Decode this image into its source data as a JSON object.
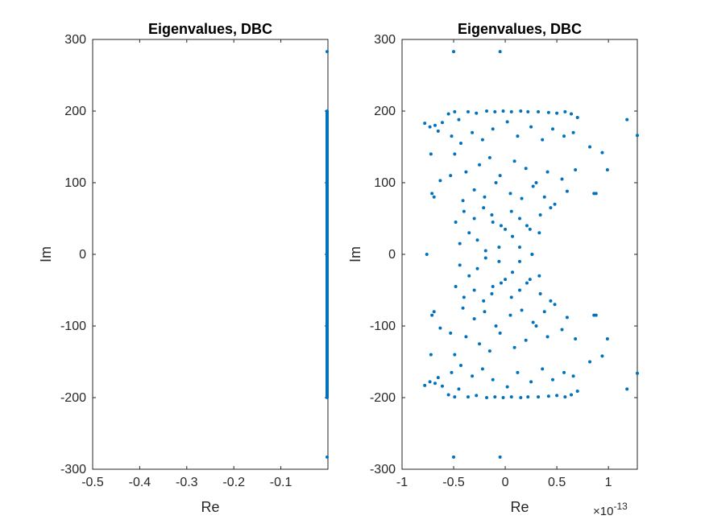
{
  "chart_data": [
    {
      "type": "scatter",
      "title": "Eigenvalues, DBC",
      "xlabel": "Re",
      "ylabel": "Im",
      "xlim": [
        -0.5,
        0
      ],
      "ylim": [
        -300,
        300
      ],
      "xticks": [
        -0.5,
        -0.4,
        -0.3,
        -0.2,
        -0.1
      ],
      "xtick_labels": [
        "-0.5",
        "-0.4",
        "-0.3",
        "-0.2",
        "-0.1"
      ],
      "yticks": [
        -300,
        -200,
        -100,
        0,
        100,
        200,
        300
      ],
      "ytick_labels": [
        "-300",
        "-200",
        "-100",
        "0",
        "100",
        "200",
        "300"
      ],
      "grid": false,
      "marker_color": "#0072BD",
      "series": [
        {
          "note_points": "Points lie at Re ≈ 0 densely from Im -200 to 200, plus isolated at ±283",
          "x": [
            0,
            0
          ],
          "y": [
            283,
            -283
          ],
          "dense_column": {
            "x": 0,
            "y_from": -200,
            "y_to": 200,
            "count": 400
          }
        }
      ]
    },
    {
      "type": "scatter",
      "title": "Eigenvalues, DBC",
      "xlabel": "Re",
      "ylabel": "Im",
      "x_exponent_label": "×10",
      "x_exponent": "-13",
      "xlim": [
        -1,
        1.28
      ],
      "ylim": [
        -300,
        300
      ],
      "xticks": [
        -1,
        -0.5,
        0,
        0.5,
        1
      ],
      "xtick_labels": [
        "-1",
        "-0.5",
        "0",
        "0.5",
        "1"
      ],
      "yticks": [
        -300,
        -200,
        -100,
        0,
        100,
        200,
        300
      ],
      "ytick_labels": [
        "-300",
        "-200",
        "-100",
        "0",
        "100",
        "200",
        "300"
      ],
      "grid": false,
      "marker_color": "#0072BD",
      "series": [
        {
          "x": [
            -0.5,
            -0.05,
            -0.78,
            -0.73,
            -0.68,
            -0.65,
            -0.61,
            -0.55,
            -0.49,
            -0.45,
            -0.36,
            -0.28,
            -0.18,
            -0.1,
            -0.02,
            0.06,
            0.15,
            0.22,
            0.32,
            0.42,
            0.5,
            0.58,
            0.64,
            0.7,
            0.82,
            0.94,
            1.18,
            1.28,
            -0.72,
            -0.52,
            -0.43,
            -0.32,
            -0.22,
            -0.12,
            0.02,
            0.12,
            0.25,
            0.36,
            0.46,
            0.57,
            0.66,
            -0.69,
            -0.49,
            -0.38,
            -0.25,
            -0.15,
            -0.05,
            0.09,
            0.2,
            0.3,
            0.41,
            0.55,
            0.68,
            0.86,
            0.99,
            -0.71,
            -0.63,
            -0.53,
            -0.41,
            -0.3,
            -0.2,
            -0.09,
            0.05,
            0.16,
            0.27,
            0.38,
            0.48,
            0.6,
            0.88,
            -0.76,
            -0.44,
            -0.35,
            -0.27,
            -0.19,
            -0.12,
            -0.06,
            0.0,
            0.07,
            0.14,
            0.21,
            0.26,
            0.33,
            -0.48,
            -0.4,
            -0.3,
            -0.21,
            -0.13,
            -0.04,
            0.06,
            0.14,
            0.24,
            0.34,
            0.44,
            -0.5,
            -0.05,
            -0.78,
            -0.73,
            -0.68,
            -0.65,
            -0.61,
            -0.55,
            -0.49,
            -0.45,
            -0.36,
            -0.28,
            -0.18,
            -0.1,
            -0.02,
            0.06,
            0.15,
            0.22,
            0.32,
            0.42,
            0.5,
            0.58,
            0.64,
            0.7,
            0.82,
            0.94,
            1.18,
            1.28,
            -0.72,
            -0.52,
            -0.43,
            -0.32,
            -0.22,
            -0.12,
            0.02,
            0.12,
            0.25,
            0.36,
            0.46,
            0.57,
            0.66,
            -0.69,
            -0.49,
            -0.38,
            -0.25,
            -0.15,
            -0.05,
            0.09,
            0.2,
            0.3,
            0.41,
            0.55,
            0.68,
            0.86,
            0.99,
            -0.71,
            -0.63,
            -0.53,
            -0.41,
            -0.3,
            -0.2,
            -0.09,
            0.05,
            0.16,
            0.27,
            0.38,
            0.48,
            0.6,
            0.88,
            -0.44,
            -0.35,
            -0.27,
            -0.19,
            -0.12,
            -0.06,
            0.0,
            0.07,
            0.14,
            0.21,
            0.26,
            0.33,
            -0.48,
            -0.4,
            -0.3,
            -0.21,
            -0.13,
            -0.04,
            0.06,
            0.14,
            0.24,
            0.34,
            0.44
          ],
          "y": [
            283,
            283,
            183,
            178,
            180,
            172,
            184,
            196,
            199,
            188,
            199,
            197,
            200,
            199,
            200,
            199,
            200,
            199,
            199,
            198,
            197,
            199,
            196,
            191,
            150,
            142,
            188,
            166,
            140,
            165,
            155,
            170,
            160,
            175,
            185,
            165,
            178,
            160,
            175,
            165,
            170,
            80,
            140,
            115,
            125,
            135,
            110,
            130,
            120,
            100,
            115,
            105,
            118,
            85,
            118,
            85,
            103,
            110,
            75,
            90,
            80,
            100,
            85,
            78,
            95,
            80,
            70,
            88,
            85,
            0,
            15,
            30,
            20,
            5,
            45,
            10,
            35,
            25,
            10,
            40,
            0,
            30,
            45,
            60,
            50,
            65,
            55,
            40,
            60,
            50,
            35,
            55,
            65,
            -283,
            -283,
            -183,
            -178,
            -180,
            -172,
            -184,
            -196,
            -199,
            -188,
            -199,
            -197,
            -200,
            -199,
            -200,
            -199,
            -200,
            -199,
            -199,
            -198,
            -197,
            -199,
            -196,
            -191,
            -150,
            -142,
            -188,
            -166,
            -140,
            -165,
            -155,
            -170,
            -160,
            -175,
            -185,
            -165,
            -178,
            -160,
            -175,
            -165,
            -170,
            -80,
            -140,
            -115,
            -125,
            -135,
            -110,
            -130,
            -120,
            -100,
            -115,
            -105,
            -118,
            -85,
            -118,
            -85,
            -103,
            -110,
            -75,
            -90,
            -80,
            -100,
            -85,
            -78,
            -95,
            -80,
            -70,
            -88,
            -85,
            -15,
            -30,
            -20,
            -5,
            -45,
            -10,
            -35,
            -25,
            -10,
            -40,
            0,
            -30,
            -45,
            -60,
            -50,
            -65,
            -55,
            -40,
            -60,
            -50,
            -35,
            -55,
            -65
          ]
        }
      ]
    }
  ]
}
